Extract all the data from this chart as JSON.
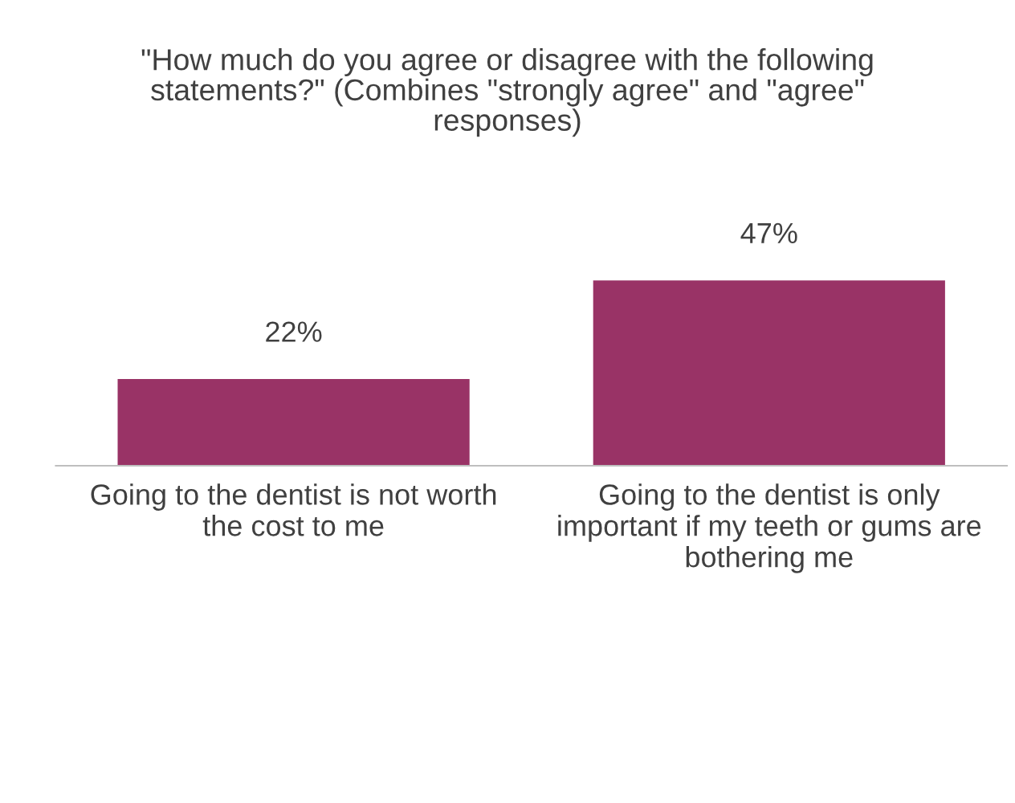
{
  "chart_data": {
    "type": "bar",
    "title": "\"How much do you agree or disagree with the following statements?\" (Combines \"strongly agree\" and \"agree\" responses)",
    "categories": [
      "Going to the dentist is not worth the cost to me",
      "Going to the dentist is only important if my teeth or gums are bothering me"
    ],
    "values": [
      22,
      47
    ],
    "color": "#993366",
    "data_labels": true,
    "value_labels": [
      "22%",
      "47%"
    ],
    "tick_labels": "x"
  }
}
